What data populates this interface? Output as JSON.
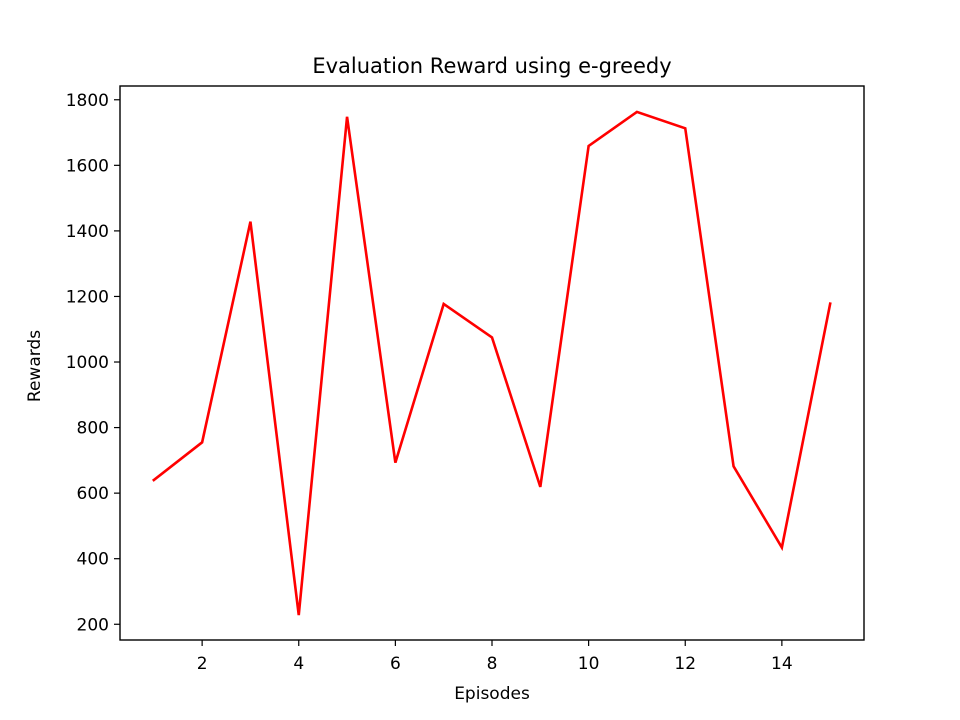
{
  "chart_data": {
    "type": "line",
    "title": "Evaluation Reward using e-greedy",
    "xlabel": "Episodes",
    "ylabel": "Rewards",
    "x": [
      1,
      2,
      3,
      4,
      5,
      6,
      7,
      8,
      9,
      10,
      11,
      12,
      13,
      14,
      15
    ],
    "series": [
      {
        "values": [
          640,
          755,
          1428,
          228,
          1748,
          693,
          1177,
          1075,
          619,
          1659,
          1763,
          1713,
          682,
          434,
          1178
        ],
        "color": "#ff0000"
      }
    ],
    "xlim": [
      0.3,
      15.7
    ],
    "ylim": [
      152,
      1842
    ],
    "xticks": [
      2,
      4,
      6,
      8,
      10,
      12,
      14
    ],
    "yticks": [
      200,
      400,
      600,
      800,
      1000,
      1200,
      1400,
      1600,
      1800
    ],
    "grid": false,
    "legend": "none"
  }
}
